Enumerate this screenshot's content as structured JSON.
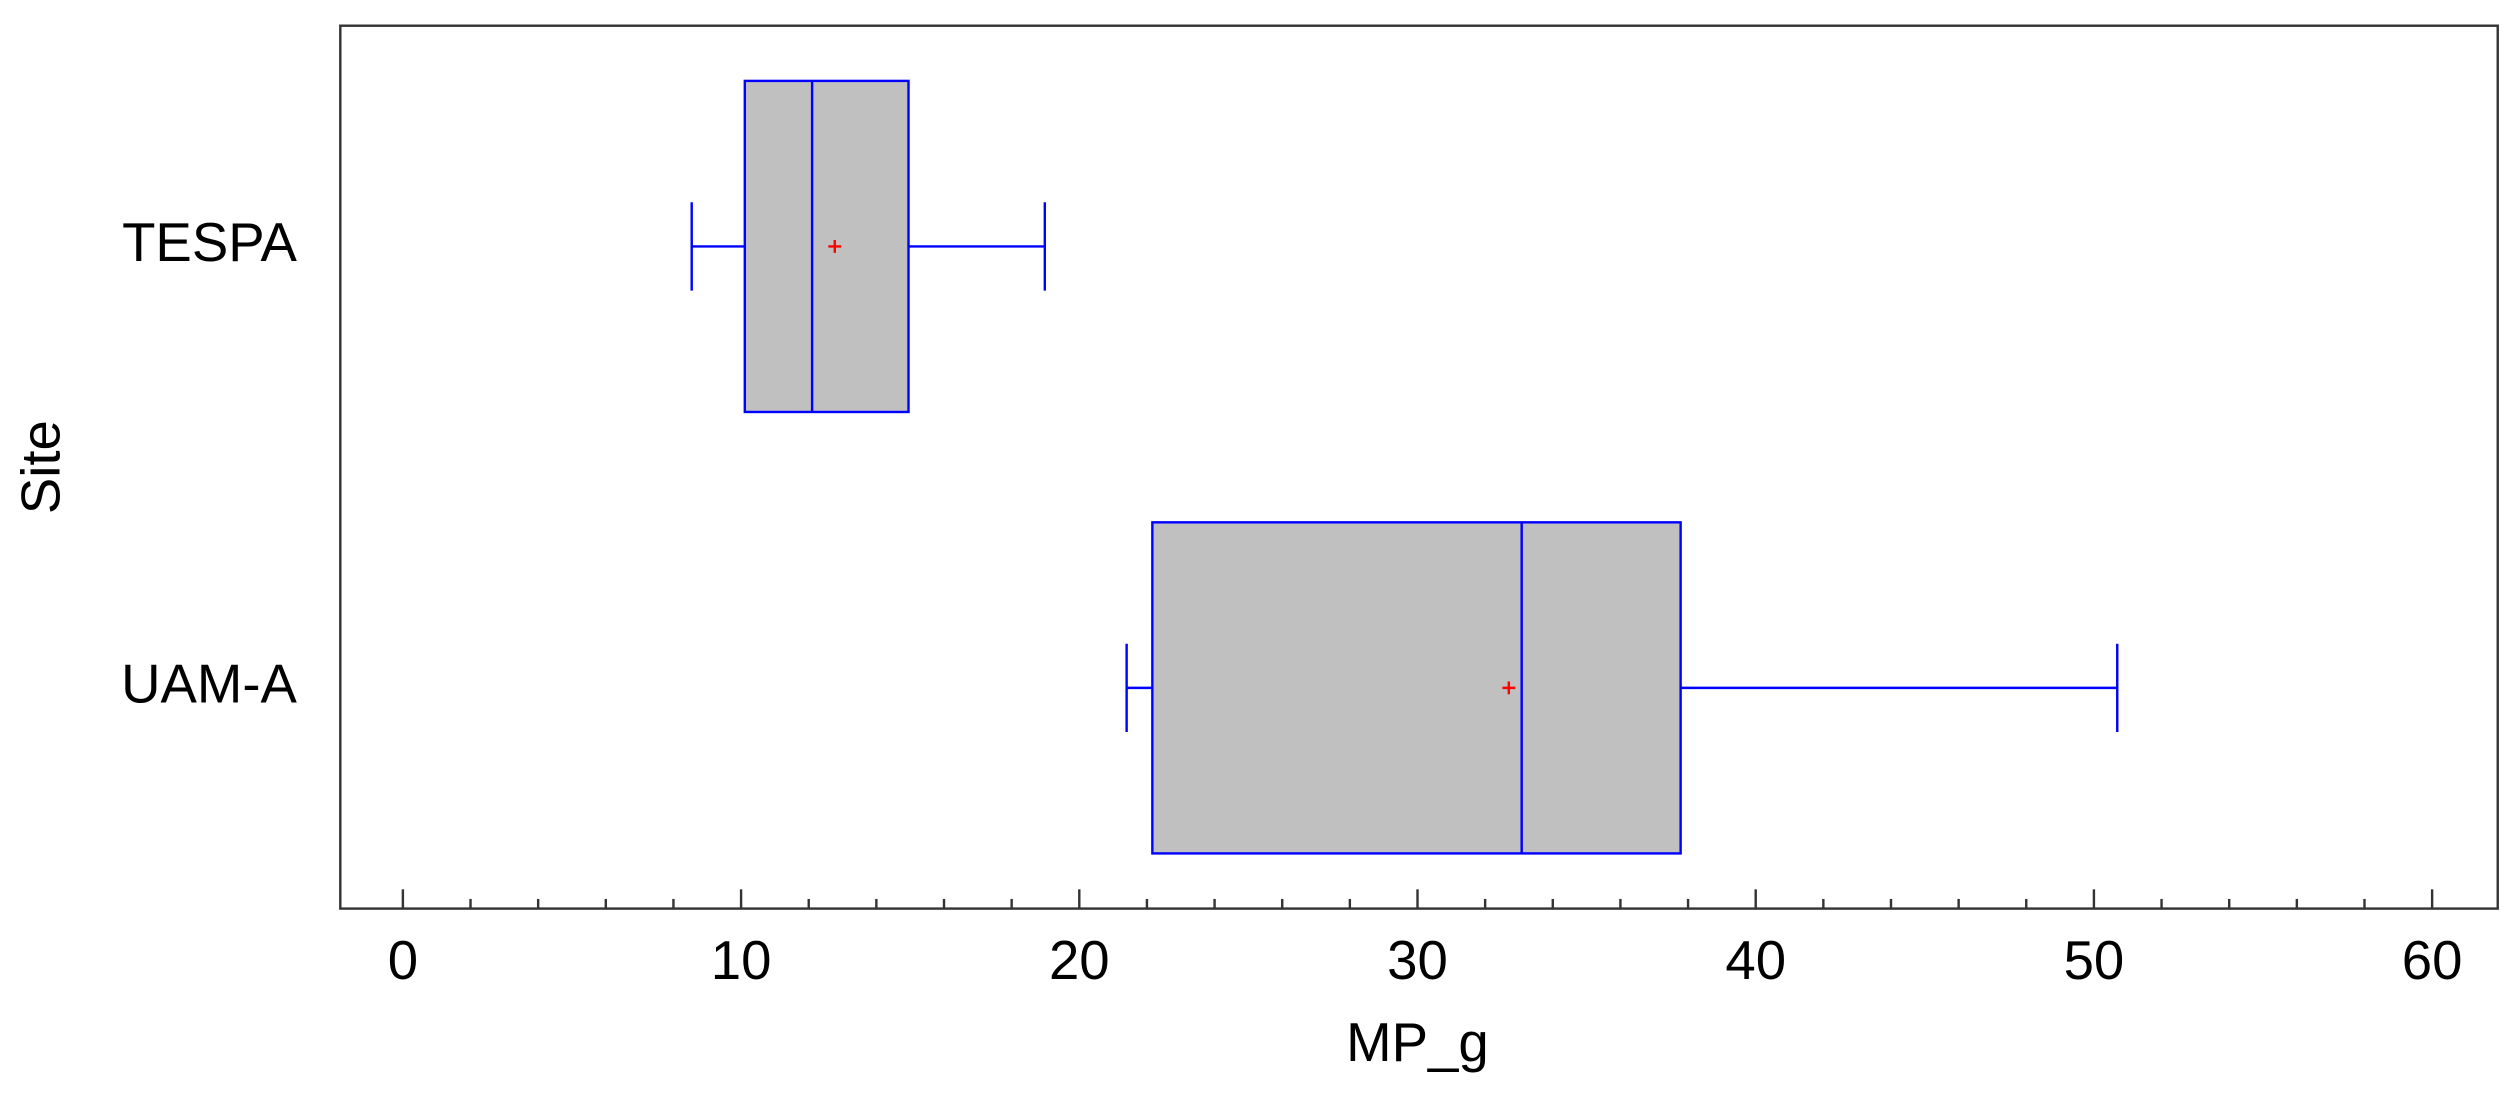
{
  "chart_data": {
    "type": "boxplot",
    "orientation": "horizontal",
    "x_label": "MP_g",
    "y_label": "Site",
    "categories": [
      "TESPA",
      "UAM-A"
    ],
    "min": [
      8.54,
      21.4
    ],
    "q1": [
      10.11,
      22.16
    ],
    "median": [
      12.1,
      33.08
    ],
    "q3": [
      14.95,
      37.78
    ],
    "max": [
      18.98,
      50.69
    ],
    "mean": [
      12.77,
      32.7
    ],
    "xlim": [
      -1.85,
      61.94
    ],
    "xticks": [
      0,
      10,
      20,
      30,
      40,
      50,
      60
    ],
    "xminorticks": [
      2,
      4,
      6,
      8,
      12,
      14,
      16,
      18,
      22,
      24,
      26,
      28,
      32,
      34,
      36,
      38,
      42,
      44,
      46,
      48,
      52,
      54,
      56,
      58
    ],
    "box_color": "#c0c0c0",
    "line_color": "#0000ff",
    "mean_color": "#ff0000"
  }
}
